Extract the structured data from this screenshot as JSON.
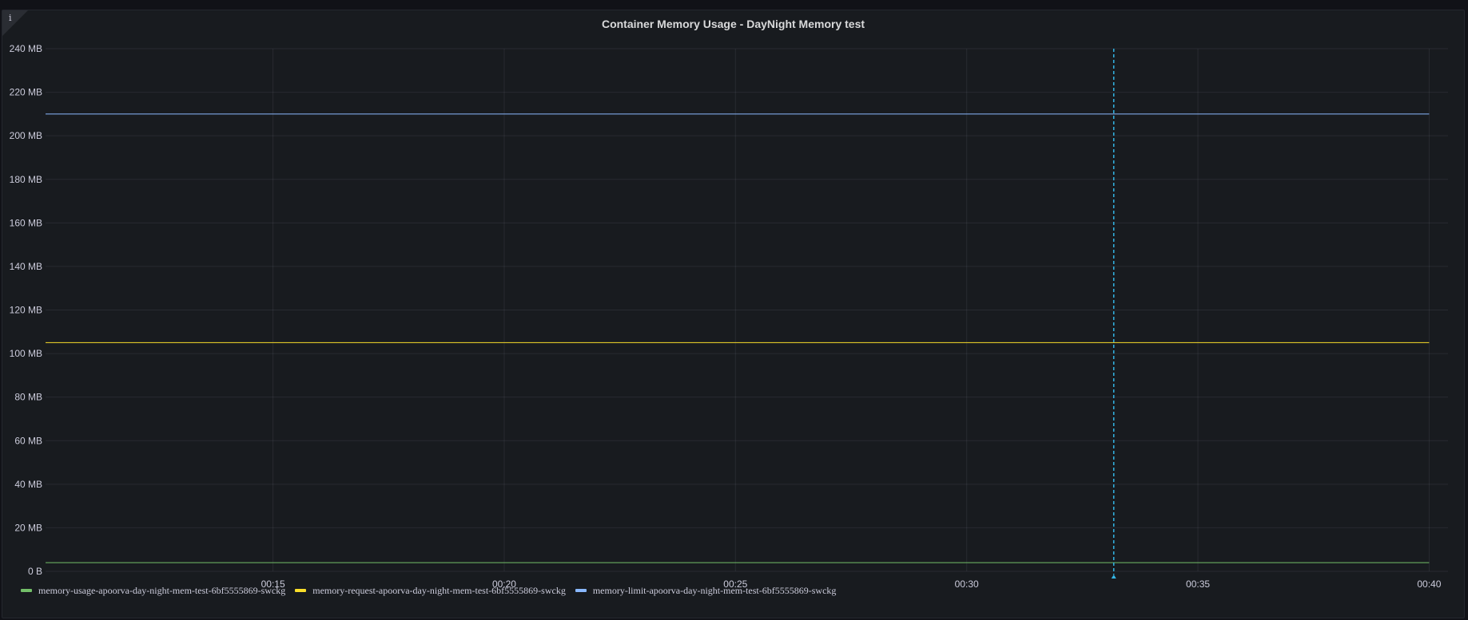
{
  "panel": {
    "title": "Container Memory Usage - DayNight Memory test",
    "info_glyph": "i",
    "icons": {
      "info": "info-icon"
    }
  },
  "chart_data": {
    "type": "line",
    "title": "Container Memory Usage - DayNight Memory test",
    "xlabel": "",
    "ylabel": "",
    "ylim": [
      0,
      240
    ],
    "yunit": "MB",
    "yticks": [
      "0 B",
      "20 MB",
      "40 MB",
      "60 MB",
      "80 MB",
      "100 MB",
      "120 MB",
      "140 MB",
      "160 MB",
      "180 MB",
      "200 MB",
      "220 MB",
      "240 MB"
    ],
    "xticks": [
      "00:15",
      "00:20",
      "00:25",
      "00:30",
      "00:35",
      "00:40"
    ],
    "grid": true,
    "legend_position": "bottom-left",
    "cursor_time": "00:33",
    "series": [
      {
        "name": "memory-usage-apoorva-day-night-mem-test-6bf5555869-swckg",
        "color": "#73bf69",
        "x": [
          "00:10",
          "00:40"
        ],
        "values": [
          4,
          4
        ]
      },
      {
        "name": "memory-request-apoorva-day-night-mem-test-6bf5555869-swckg",
        "color": "#fade2a",
        "x": [
          "00:10",
          "00:40"
        ],
        "values": [
          105,
          105
        ]
      },
      {
        "name": "memory-limit-apoorva-day-night-mem-test-6bf5555869-swckg",
        "color": "#8ab8ff",
        "x": [
          "00:10",
          "00:40"
        ],
        "values": [
          210,
          210
        ]
      }
    ]
  }
}
